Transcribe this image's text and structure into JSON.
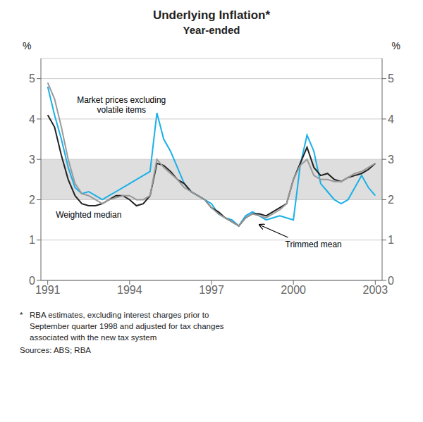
{
  "chart_data": {
    "type": "line",
    "title": "Underlying Inflation*",
    "subtitle": "Year-ended",
    "ylabel": "%",
    "y2label": "%",
    "x": [
      1991.0,
      1991.25,
      1991.5,
      1991.75,
      1992.0,
      1992.25,
      1992.5,
      1992.75,
      1993.0,
      1993.25,
      1993.5,
      1993.75,
      1994.0,
      1994.25,
      1994.5,
      1994.75,
      1995.0,
      1995.25,
      1995.5,
      1995.75,
      1996.0,
      1996.25,
      1996.5,
      1996.75,
      1997.0,
      1997.25,
      1997.5,
      1997.75,
      1998.0,
      1998.25,
      1998.5,
      1998.75,
      1999.0,
      1999.25,
      1999.5,
      1999.75,
      2000.0,
      2000.25,
      2000.5,
      2000.75,
      2001.0,
      2001.25,
      2001.5,
      2001.75,
      2002.0,
      2002.25,
      2002.5,
      2002.75,
      2003.0
    ],
    "xlim": [
      1990.75,
      2003.25
    ],
    "xticks": [
      1991,
      1994,
      1997,
      2000,
      2003
    ],
    "ylim": [
      0,
      5.5
    ],
    "yticks": [
      0,
      1,
      2,
      3,
      4,
      5
    ],
    "y2lim": [
      0,
      5.5
    ],
    "y2ticks": [
      0,
      1,
      2,
      3,
      4,
      5
    ],
    "grid": true,
    "band": {
      "ymin": 2.0,
      "ymax": 3.0,
      "color": "#c8c8c8"
    },
    "series": [
      {
        "color": "#1ab0e8",
        "values": [
          4.8,
          4.1,
          3.5,
          2.8,
          2.3,
          2.15,
          2.2,
          2.1,
          2.0,
          2.1,
          2.2,
          2.3,
          2.4,
          2.5,
          2.6,
          2.7,
          4.15,
          3.5,
          3.2,
          2.8,
          2.4,
          2.2,
          2.1,
          2.0,
          1.9,
          1.65,
          1.55,
          1.5,
          1.35,
          1.6,
          1.7,
          1.6,
          1.5,
          1.55,
          1.6,
          1.55,
          1.5,
          2.85,
          3.6,
          3.2,
          2.4,
          2.2,
          2.0,
          1.9,
          2.0,
          2.3,
          2.6,
          2.3,
          2.1
        ]
      },
      {
        "color": "#222222",
        "values": [
          4.1,
          3.8,
          3.1,
          2.5,
          2.1,
          1.9,
          1.85,
          1.85,
          1.9,
          2.0,
          2.1,
          2.1,
          2.0,
          1.85,
          1.9,
          2.1,
          2.9,
          2.85,
          2.7,
          2.5,
          2.4,
          2.2,
          2.1,
          2.0,
          1.8,
          1.7,
          1.55,
          1.45,
          1.35,
          1.55,
          1.65,
          1.65,
          1.6,
          1.7,
          1.8,
          1.9,
          2.5,
          2.9,
          3.3,
          2.8,
          2.6,
          2.65,
          2.5,
          2.45,
          2.55,
          2.6,
          2.65,
          2.75,
          2.9
        ]
      },
      {
        "color": "#999999",
        "values": [
          4.9,
          4.5,
          3.8,
          3.0,
          2.4,
          2.15,
          2.1,
          2.0,
          1.9,
          2.0,
          2.05,
          2.1,
          2.1,
          2.0,
          2.0,
          2.1,
          3.0,
          2.8,
          2.65,
          2.5,
          2.3,
          2.2,
          2.1,
          2.0,
          1.8,
          1.65,
          1.55,
          1.45,
          1.35,
          1.55,
          1.65,
          1.6,
          1.55,
          1.65,
          1.75,
          1.9,
          2.5,
          2.85,
          3.0,
          2.6,
          2.5,
          2.5,
          2.45,
          2.45,
          2.55,
          2.65,
          2.7,
          2.8,
          2.9
        ]
      }
    ],
    "annotations": [
      {
        "text": "Market prices excluding\nvolatile items",
        "x": 1993.7,
        "y": 4.35
      },
      {
        "text": "Weighted median",
        "x": 1992.5,
        "y": 1.62
      },
      {
        "text": "Trimmed mean",
        "x": 1999.7,
        "y": 0.82,
        "arrow_to": [
          1998.75,
          1.38
        ]
      }
    ],
    "footnote_marker": "*",
    "footnote": [
      "RBA estimates, excluding interest charges prior to",
      "September quarter 1998 and adjusted for tax changes",
      "associated with the new tax system"
    ],
    "source": "Sources: ABS; RBA"
  }
}
